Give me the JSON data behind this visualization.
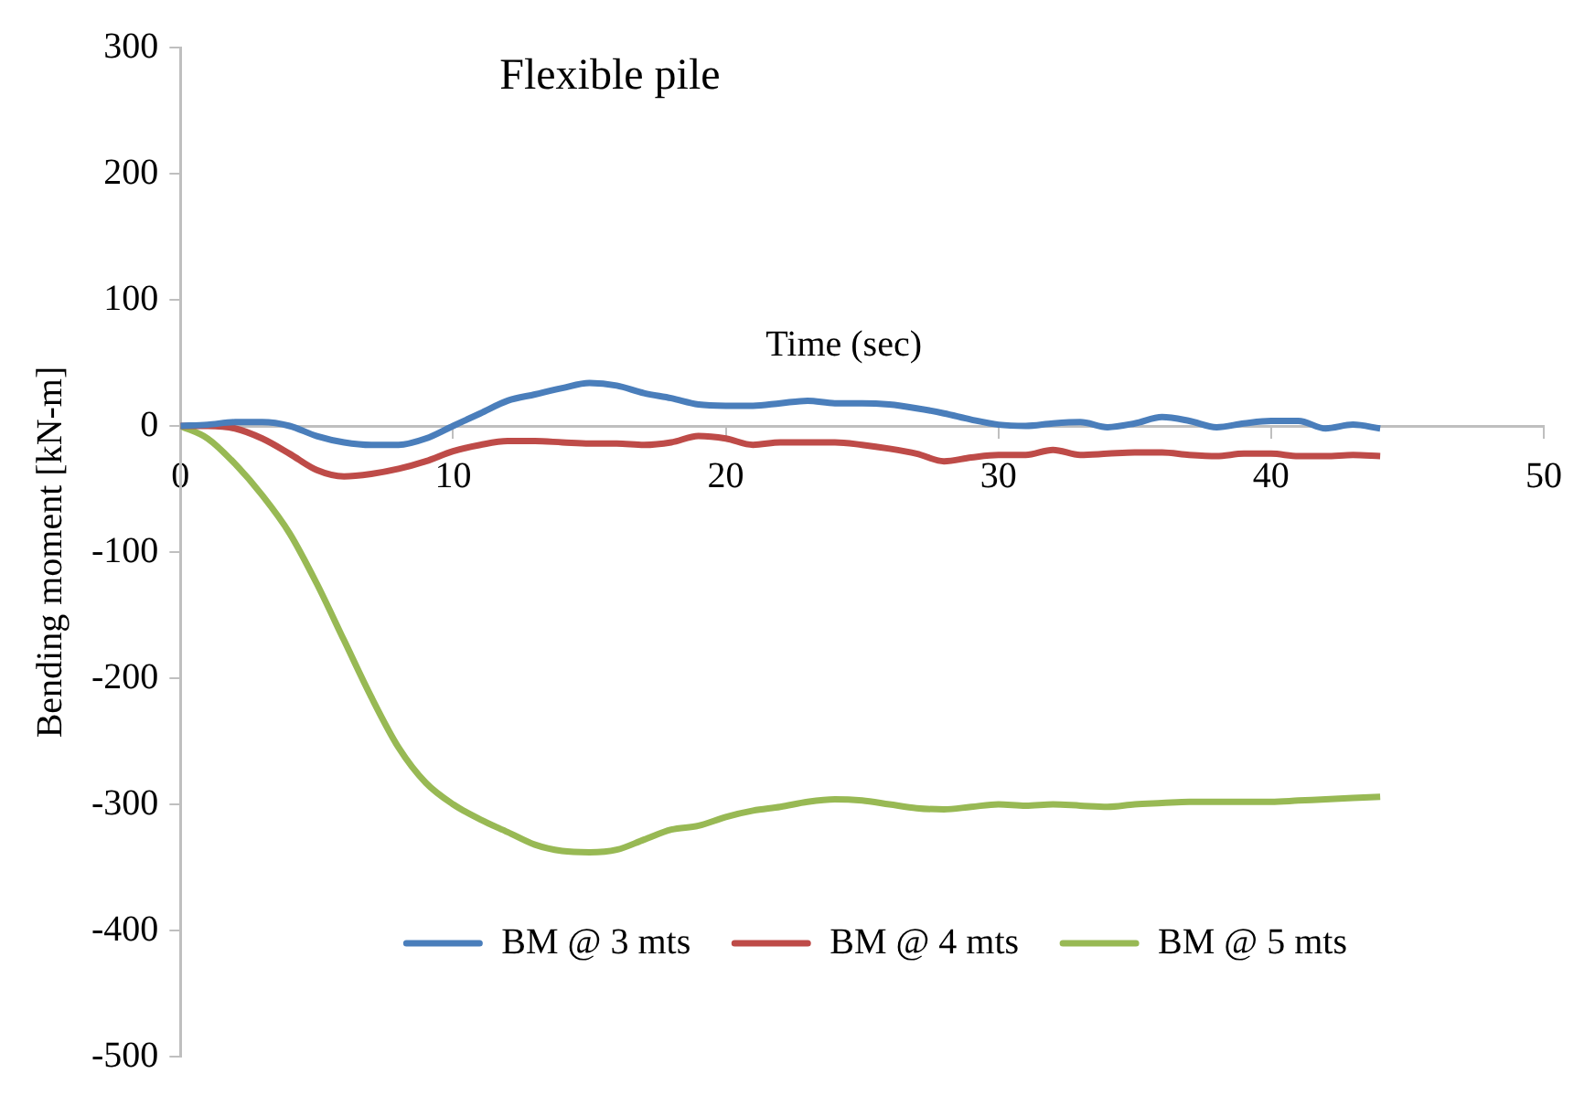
{
  "chart_data": {
    "type": "line",
    "title": "Flexible pile",
    "xlabel": "Time (sec)",
    "ylabel": "Bending moment [kN-m]",
    "x": [
      0,
      1,
      2,
      3,
      4,
      5,
      6,
      7,
      8,
      9,
      10,
      11,
      12,
      13,
      14,
      15,
      16,
      17,
      18,
      19,
      20,
      21,
      22,
      23,
      24,
      25,
      26,
      27,
      28,
      29,
      30,
      31,
      32,
      33,
      34,
      35,
      36,
      37,
      38,
      39,
      40,
      41,
      42,
      43,
      44
    ],
    "series": [
      {
        "name": "BM @ 3 mts",
        "color": "#4a7ebb",
        "values": [
          0,
          1,
          3,
          3,
          0,
          -8,
          -13,
          -15,
          -15,
          -10,
          0,
          10,
          20,
          25,
          30,
          34,
          32,
          26,
          22,
          17,
          16,
          16,
          18,
          20,
          18,
          18,
          17,
          14,
          10,
          5,
          1,
          0,
          2,
          3,
          -1,
          2,
          7,
          4,
          -1,
          2,
          4,
          4,
          -2,
          1,
          -2
        ]
      },
      {
        "name": "BM @ 4 mts",
        "color": "#be4b48",
        "values": [
          0,
          0,
          -2,
          -10,
          -22,
          -35,
          -40,
          -38,
          -34,
          -28,
          -20,
          -15,
          -12,
          -12,
          -13,
          -14,
          -14,
          -15,
          -13,
          -8,
          -10,
          -15,
          -13,
          -13,
          -13,
          -15,
          -18,
          -22,
          -28,
          -25,
          -23,
          -23,
          -19,
          -23,
          -22,
          -21,
          -21,
          -23,
          -24,
          -22,
          -22,
          -24,
          -24,
          -23,
          -24
        ]
      },
      {
        "name": "BM @ 5 mts",
        "color": "#98b954",
        "values": [
          0,
          -10,
          -30,
          -55,
          -85,
          -125,
          -170,
          -215,
          -255,
          -283,
          -300,
          -312,
          -322,
          -332,
          -337,
          -338,
          -336,
          -328,
          -320,
          -317,
          -310,
          -305,
          -302,
          -298,
          -296,
          -297,
          -300,
          -303,
          -304,
          -302,
          -300,
          -301,
          -300,
          -301,
          -302,
          -300,
          -299,
          -298,
          -298,
          -298,
          -298,
          -297,
          -296,
          -295,
          -294
        ]
      }
    ],
    "xlim": [
      0,
      50
    ],
    "xticks": [
      0,
      10,
      20,
      30,
      40,
      50
    ],
    "ylim": [
      -500,
      300
    ],
    "yticks": [
      -500,
      -400,
      -300,
      -200,
      -100,
      0,
      100,
      200,
      300
    ],
    "grid": false,
    "legend": "bottom",
    "marker": "none",
    "line_style": "solid"
  }
}
